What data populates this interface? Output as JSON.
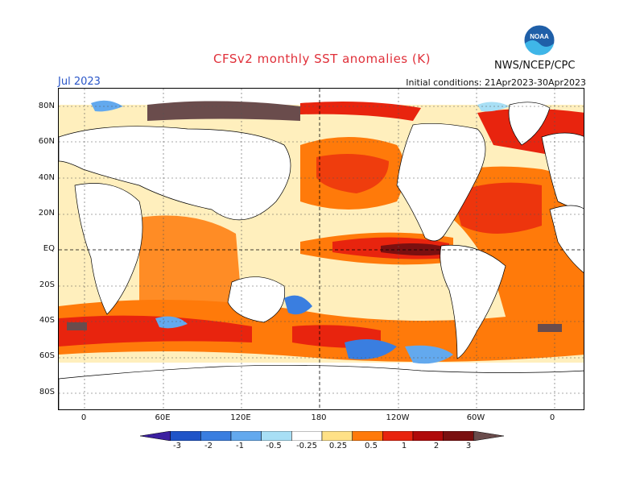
{
  "title": "CFSv2 monthly SST anomalies (K)",
  "month": "Jul 2023",
  "initial_conditions": "Initial conditions: 21Apr2023-30Apr2023",
  "credit": "NWS/NCEP/CPC",
  "logo_text": "NOAA",
  "lat_labels": [
    "80N",
    "60N",
    "40N",
    "20N",
    "EQ",
    "20S",
    "40S",
    "60S",
    "80S"
  ],
  "lon_labels": [
    "0",
    "60E",
    "120E",
    "180",
    "120W",
    "60W",
    "0"
  ],
  "colorbar": {
    "labels": [
      "-3",
      "-2",
      "-1",
      "-0.5",
      "-0.25",
      "0.25",
      "0.5",
      "1",
      "2",
      "3"
    ],
    "colors": [
      "#3b1fa0",
      "#1f54c8",
      "#3a7ee0",
      "#63a9ee",
      "#a8dff5",
      "#ffffff",
      "#ffe187",
      "#ff7a0a",
      "#e8240e",
      "#b00a0a",
      "#7a1010",
      "#6a4c4c"
    ]
  }
}
